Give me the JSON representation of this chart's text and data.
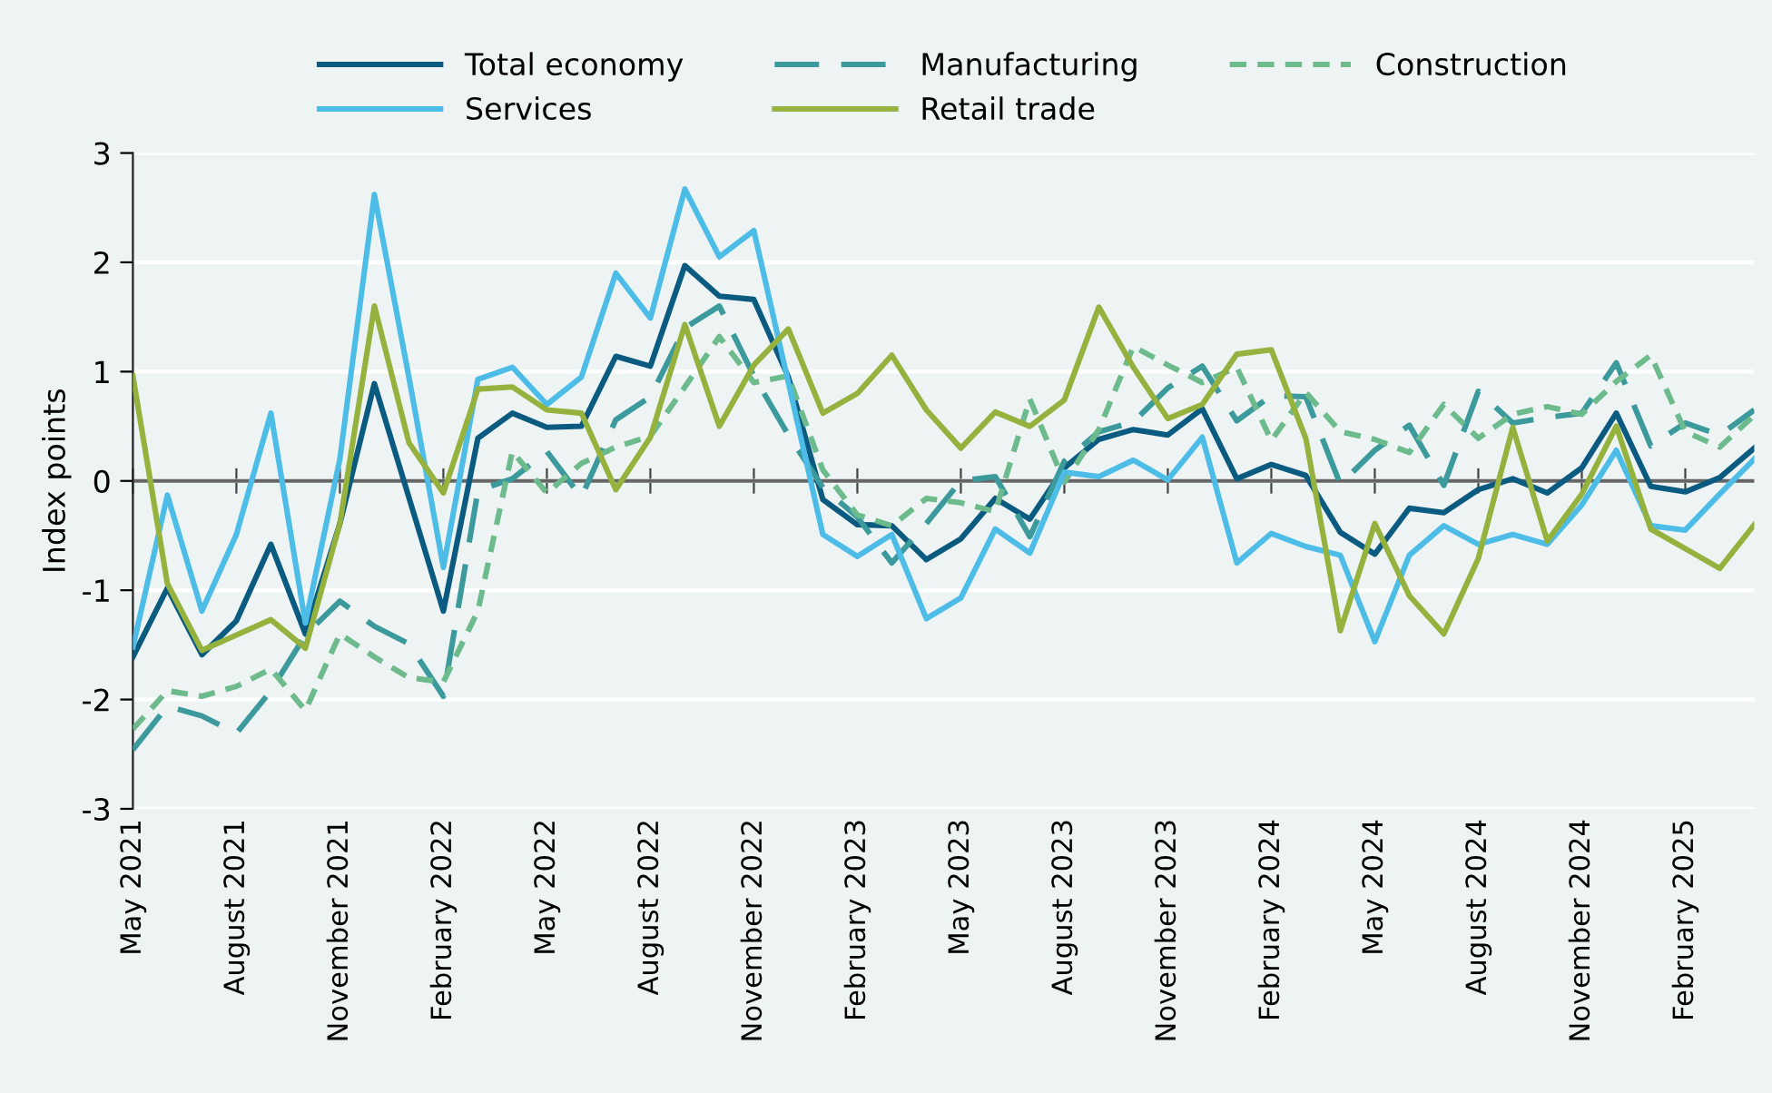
{
  "chart_data": {
    "type": "line",
    "ylabel": "Index points",
    "categories": [
      "May 2021",
      null,
      null,
      "August 2021",
      null,
      null,
      "November 2021",
      null,
      null,
      "February 2022",
      null,
      null,
      "May 2022",
      null,
      null,
      "August 2022",
      null,
      null,
      "November 2022",
      null,
      null,
      "February 2023",
      null,
      null,
      "May 2023",
      null,
      null,
      "August 2023",
      null,
      null,
      "November 2023",
      null,
      null,
      "February 2024",
      null,
      null,
      "May 2024",
      null,
      null,
      "August 2024",
      null,
      null,
      "November 2024",
      null,
      null,
      "February 2025",
      null,
      null
    ],
    "series": [
      {
        "name": "Total economy",
        "color": "#0b5a80",
        "line_style": "solid",
        "values": [
          -1.61,
          -0.98,
          -1.59,
          -1.28,
          -0.58,
          -1.4,
          -0.39,
          0.89,
          -0.15,
          -1.19,
          0.39,
          0.62,
          0.49,
          0.5,
          1.14,
          1.05,
          1.97,
          1.69,
          1.66,
          0.95,
          -0.17,
          -0.4,
          -0.41,
          -0.72,
          -0.53,
          -0.16,
          -0.35,
          0.12,
          0.38,
          0.47,
          0.42,
          0.66,
          0.02,
          0.15,
          0.05,
          -0.47,
          -0.67,
          -0.25,
          -0.29,
          -0.08,
          0.02,
          -0.11,
          0.12,
          0.62,
          -0.05,
          -0.1,
          0.03,
          0.3
        ]
      },
      {
        "name": "Manufacturing",
        "color": "#3c9a9c",
        "line_style": "dashed",
        "values": [
          -2.46,
          -2.06,
          -2.15,
          -2.31,
          -1.92,
          -1.41,
          -1.1,
          -1.33,
          -1.49,
          -1.97,
          -0.09,
          0.02,
          0.27,
          -0.15,
          0.56,
          0.77,
          1.4,
          1.6,
          0.96,
          0.42,
          -0.06,
          -0.33,
          -0.75,
          -0.39,
          0.0,
          0.04,
          -0.51,
          0.18,
          0.45,
          0.54,
          0.85,
          1.05,
          0.55,
          0.78,
          0.77,
          -0.03,
          0.28,
          0.51,
          -0.04,
          0.82,
          0.53,
          0.58,
          0.62,
          1.08,
          0.32,
          0.53,
          0.42,
          0.65
        ]
      },
      {
        "name": "Construction",
        "color": "#6dbb8c",
        "line_style": "dotted",
        "values": [
          -2.27,
          -1.92,
          -1.97,
          -1.88,
          -1.72,
          -2.1,
          -1.4,
          -1.61,
          -1.8,
          -1.84,
          -1.19,
          0.27,
          -0.11,
          0.16,
          0.31,
          0.41,
          0.86,
          1.32,
          0.9,
          0.96,
          0.1,
          -0.31,
          -0.41,
          -0.16,
          -0.2,
          -0.28,
          0.75,
          -0.01,
          0.47,
          1.23,
          1.06,
          0.9,
          1.04,
          0.37,
          0.81,
          0.45,
          0.38,
          0.26,
          0.7,
          0.39,
          0.61,
          0.68,
          0.61,
          0.91,
          1.15,
          0.45,
          0.31,
          0.6
        ]
      },
      {
        "name": "Services",
        "color": "#4dbde8",
        "line_style": "solid",
        "values": [
          -1.52,
          -0.13,
          -1.19,
          -0.49,
          0.62,
          -1.3,
          0.2,
          2.62,
          0.95,
          -0.79,
          0.93,
          1.04,
          0.7,
          0.95,
          1.9,
          1.49,
          2.67,
          2.05,
          2.29,
          0.9,
          -0.49,
          -0.69,
          -0.49,
          -1.26,
          -1.07,
          -0.44,
          -0.66,
          0.08,
          0.04,
          0.19,
          0.01,
          0.4,
          -0.75,
          -0.48,
          -0.6,
          -0.68,
          -1.47,
          -0.68,
          -0.41,
          -0.58,
          -0.49,
          -0.58,
          -0.22,
          0.28,
          -0.41,
          -0.45,
          -0.12,
          0.2
        ]
      },
      {
        "name": "Retail trade",
        "color": "#95b23e",
        "line_style": "solid",
        "values": [
          0.96,
          -0.94,
          -1.55,
          -1.41,
          -1.27,
          -1.53,
          -0.39,
          1.6,
          0.35,
          -0.11,
          0.84,
          0.86,
          0.65,
          0.62,
          -0.08,
          0.4,
          1.43,
          0.5,
          1.06,
          1.39,
          0.62,
          0.8,
          1.15,
          0.65,
          0.3,
          0.63,
          0.5,
          0.74,
          1.59,
          1.04,
          0.57,
          0.7,
          1.16,
          1.2,
          0.39,
          -1.37,
          -0.39,
          -1.05,
          -1.4,
          -0.71,
          0.49,
          -0.55,
          -0.12,
          0.5,
          -0.44,
          -0.62,
          -0.8,
          -0.4
        ]
      }
    ],
    "ylim": [
      -3,
      3
    ],
    "yticks": [
      -3,
      -2,
      -1,
      0,
      1,
      2,
      3
    ],
    "ref_lines": [
      {
        "axis": "y",
        "value": 0,
        "color": "#666666"
      }
    ],
    "grid": "y",
    "legend": "top",
    "marker": "none"
  }
}
